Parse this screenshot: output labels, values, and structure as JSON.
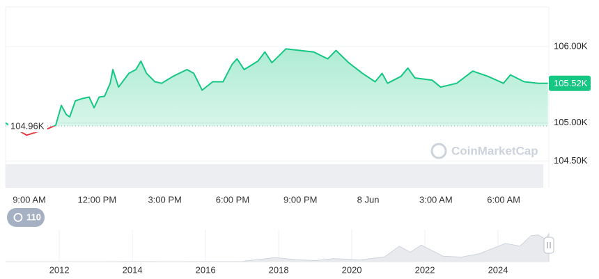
{
  "chart_data": {
    "type": "line",
    "x": [
      7.95,
      8.88,
      9.86,
      10.17,
      10.42,
      10.64,
      10.79,
      11.04,
      11.35,
      11.65,
      11.87,
      12.09,
      12.33,
      12.58,
      12.7,
      12.95,
      13.41,
      13.72,
      13.94,
      14.19,
      14.56,
      14.86,
      15.36,
      15.98,
      16.28,
      16.65,
      17.12,
      17.58,
      17.98,
      18.2,
      18.51,
      19.12,
      19.43,
      19.74,
      20.36,
      20.98,
      21.59,
      22.21,
      22.58,
      23.14,
      23.75,
      24.31,
      24.62,
      24.86,
      25.45,
      25.76,
      26.07,
      26.84,
      27.21,
      27.92,
      28.63,
      29.31,
      29.99,
      30.3,
      30.91,
      31.53,
      31.96
    ],
    "series": [
      {
        "color": "#16c784",
        "below_color": "#ea3943",
        "values": [
          105.0,
          104.84,
          104.93,
          104.97,
          105.23,
          105.11,
          105.08,
          105.29,
          105.32,
          105.34,
          105.2,
          105.34,
          105.35,
          105.52,
          105.7,
          105.47,
          105.65,
          105.7,
          105.81,
          105.65,
          105.54,
          105.52,
          105.61,
          105.7,
          105.65,
          105.43,
          105.54,
          105.54,
          105.77,
          105.84,
          105.7,
          105.81,
          105.93,
          105.79,
          105.97,
          105.95,
          105.93,
          105.84,
          105.95,
          105.79,
          105.65,
          105.54,
          105.65,
          105.52,
          105.61,
          105.72,
          105.59,
          105.56,
          105.47,
          105.52,
          105.68,
          105.61,
          105.52,
          105.63,
          105.54,
          105.52,
          105.52
        ]
      }
    ],
    "xlim": [
      7.95,
      32.0
    ],
    "xticks": [
      {
        "value": 9,
        "label": "9:00 AM"
      },
      {
        "value": 12,
        "label": "12:00 PM"
      },
      {
        "value": 15,
        "label": "3:00 PM"
      },
      {
        "value": 18,
        "label": "6:00 PM"
      },
      {
        "value": 21,
        "label": "9:00 PM"
      },
      {
        "value": 24,
        "label": "8 Jun"
      },
      {
        "value": 27,
        "label": "3:00 AM"
      },
      {
        "value": 30,
        "label": "6:00 AM"
      }
    ],
    "ylim": [
      104.15,
      106.52
    ],
    "yticks": [
      {
        "value": 106.0,
        "label": "106.00K"
      },
      {
        "value": 105.0,
        "label": "105.00K"
      },
      {
        "value": 104.5,
        "label": "104.50K"
      }
    ],
    "grid": true,
    "open": {
      "value": 104.96,
      "label": "104.96K"
    },
    "last_price": {
      "value": 105.52,
      "label": "105.52K"
    },
    "watermark": "CoinMarketCap",
    "badge": "110",
    "navigator": {
      "x": [
        2010.53,
        2011,
        2013,
        2014,
        2015,
        2016,
        2017,
        2017.9,
        2018.5,
        2019,
        2019.5,
        2020,
        2020.2,
        2020.9,
        2021.3,
        2021.6,
        2021.9,
        2022.5,
        2023,
        2023.5,
        2024.2,
        2024.6,
        2024.9,
        2025.1,
        2025.3,
        2025.39
      ],
      "values": [
        0,
        0,
        0.1,
        0.5,
        0.3,
        0.4,
        1,
        15,
        7,
        4,
        11,
        8,
        6,
        18,
        58,
        35,
        62,
        20,
        17,
        30,
        68,
        58,
        97,
        100,
        84,
        105
      ],
      "xlim": [
        2010.53,
        2025.39
      ],
      "ylim": [
        0,
        120
      ],
      "xticks": [
        2012,
        2014,
        2016,
        2018,
        2020,
        2022,
        2024
      ]
    }
  }
}
